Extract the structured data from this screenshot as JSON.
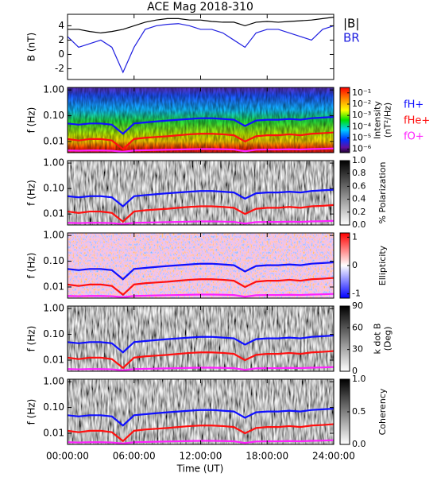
{
  "chart_data": [
    {
      "type": "line",
      "title": "ACE Mag 2018-310",
      "ylabel": "B (nT)",
      "x": [
        0,
        1,
        2,
        3,
        4,
        5,
        6,
        7,
        8,
        9,
        10,
        11,
        12,
        13,
        14,
        15,
        16,
        17,
        18,
        19,
        20,
        21,
        22,
        23,
        24
      ],
      "ylim": [
        -3.5,
        5.6
      ],
      "yticks": [
        -2,
        0,
        2,
        4
      ],
      "series": [
        {
          "name": "|B|",
          "color": "#000000",
          "values": [
            3.5,
            3.5,
            3.2,
            3.0,
            3.2,
            3.5,
            4.0,
            4.5,
            4.8,
            5.0,
            5.0,
            4.8,
            4.8,
            4.6,
            4.5,
            4.5,
            4.0,
            4.5,
            4.6,
            4.5,
            4.6,
            4.7,
            4.8,
            5.0,
            5.2
          ]
        },
        {
          "name": "BR",
          "color": "#2020e0",
          "values": [
            2.5,
            1.0,
            1.5,
            2.0,
            1.0,
            -2.5,
            1.0,
            3.5,
            4.0,
            4.2,
            4.3,
            4.0,
            3.5,
            3.5,
            3.0,
            2.0,
            1.0,
            3.0,
            3.5,
            3.5,
            3.0,
            2.5,
            2.0,
            3.5,
            4.0
          ]
        }
      ]
    },
    {
      "type": "spectrogram",
      "ylabel": "f (Hz)",
      "log_y": true,
      "ylim": [
        0.0037,
        1.25
      ],
      "yticks": [
        {
          "value": 1,
          "label": "1.00"
        },
        {
          "value": 0.1,
          "label": "0.10"
        },
        {
          "value": 0.01,
          "label": "0.01"
        }
      ],
      "colorbar": {
        "label": [
          "Intensity",
          "(nT²/Hz)"
        ],
        "colormap": "rainbow",
        "log": true,
        "lim": [
          5e-07,
          0.3
        ],
        "ticks": [
          {
            "value": 0.1,
            "label": "10⁻¹"
          },
          {
            "value": 0.01,
            "label": "10⁻²"
          },
          {
            "value": 0.001,
            "label": "10⁻³"
          },
          {
            "value": 0.0001,
            "label": "10⁻⁴"
          },
          {
            "value": 1e-05,
            "label": "10⁻⁵"
          },
          {
            "value": 1e-06,
            "label": "10⁻⁶"
          }
        ]
      },
      "x": [
        0,
        1,
        2,
        3,
        4,
        5,
        6,
        7,
        8,
        9,
        10,
        11,
        12,
        13,
        14,
        15,
        16,
        17,
        18,
        19,
        20,
        21,
        22,
        23,
        24
      ],
      "series": [
        {
          "name": "fH+",
          "color": "#1010ff",
          "values": [
            0.05,
            0.045,
            0.05,
            0.05,
            0.045,
            0.02,
            0.05,
            0.055,
            0.06,
            0.065,
            0.07,
            0.075,
            0.08,
            0.08,
            0.075,
            0.07,
            0.04,
            0.065,
            0.07,
            0.07,
            0.075,
            0.07,
            0.08,
            0.085,
            0.09
          ]
        },
        {
          "name": "fHe+",
          "color": "#ff1010",
          "values": [
            0.0125,
            0.011,
            0.0125,
            0.0125,
            0.011,
            0.005,
            0.0125,
            0.014,
            0.015,
            0.016,
            0.0175,
            0.019,
            0.02,
            0.02,
            0.019,
            0.0175,
            0.01,
            0.016,
            0.0175,
            0.0175,
            0.019,
            0.0175,
            0.02,
            0.021,
            0.0225
          ]
        },
        {
          "name": "fO+",
          "color": "#ff20ff",
          "values": [
            0.0045,
            0.0044,
            0.0045,
            0.0045,
            0.0044,
            0.004,
            0.0045,
            0.0046,
            0.0047,
            0.0048,
            0.0049,
            0.005,
            0.0051,
            0.0051,
            0.005,
            0.0049,
            0.0042,
            0.0048,
            0.0049,
            0.0049,
            0.005,
            0.0049,
            0.0051,
            0.0052,
            0.0054
          ]
        }
      ]
    },
    {
      "type": "spectrogram",
      "ylabel": "f (Hz)",
      "log_y": true,
      "ylim": [
        0.0037,
        1.25
      ],
      "yticks": [
        {
          "value": 1,
          "label": "1.00"
        },
        {
          "value": 0.1,
          "label": "0.10"
        },
        {
          "value": 0.01,
          "label": "0.01"
        }
      ],
      "colorbar": {
        "label": [
          "% Polarization"
        ],
        "colormap": "gray",
        "lim": [
          0,
          1
        ],
        "ticks": [
          {
            "value": 0,
            "label": "0.0"
          },
          {
            "value": 0.2,
            "label": "0.2"
          },
          {
            "value": 0.4,
            "label": "0.4"
          },
          {
            "value": 0.6,
            "label": "0.6"
          },
          {
            "value": 0.8,
            "label": "0.8"
          },
          {
            "value": 1,
            "label": "1.0"
          }
        ]
      }
    },
    {
      "type": "spectrogram",
      "ylabel": "f (Hz)",
      "log_y": true,
      "ylim": [
        0.0037,
        1.25
      ],
      "yticks": [
        {
          "value": 1,
          "label": "1.00"
        },
        {
          "value": 0.1,
          "label": "0.10"
        },
        {
          "value": 0.01,
          "label": "0.01"
        }
      ],
      "colorbar": {
        "label": [
          "Ellipticity"
        ],
        "colormap": "bluered",
        "lim": [
          -1.15,
          1.15
        ],
        "ticks": [
          -1,
          0,
          1
        ]
      }
    },
    {
      "type": "spectrogram",
      "ylabel": "f (Hz)",
      "log_y": true,
      "ylim": [
        0.0037,
        1.25
      ],
      "yticks": [
        {
          "value": 1,
          "label": "1.00"
        },
        {
          "value": 0.1,
          "label": "0.10"
        },
        {
          "value": 0.01,
          "label": "0.01"
        }
      ],
      "colorbar": {
        "label": [
          "k dot B",
          "(Deg)"
        ],
        "colormap": "gray",
        "lim": [
          0,
          90
        ],
        "ticks": [
          0,
          30,
          60,
          90
        ]
      }
    },
    {
      "type": "spectrogram",
      "ylabel": "f (Hz)",
      "log_y": true,
      "ylim": [
        0.0037,
        1.25
      ],
      "yticks": [
        {
          "value": 1,
          "label": "1.00"
        },
        {
          "value": 0.1,
          "label": "0.10"
        },
        {
          "value": 0.01,
          "label": "0.01"
        }
      ],
      "colorbar": {
        "label": [
          "Coherency"
        ],
        "colormap": "gray",
        "lim": [
          0,
          1
        ],
        "ticks": [
          {
            "value": 0,
            "label": "0.0"
          },
          {
            "value": 0.5,
            "label": "0.5"
          },
          {
            "value": 1,
            "label": "1.0"
          }
        ]
      },
      "xlabel": "Time (UT)",
      "xlim": [
        0,
        24
      ],
      "xticks": [
        {
          "value": 0,
          "label": "00:00:00"
        },
        {
          "value": 6,
          "label": "06:00:00"
        },
        {
          "value": 12,
          "label": "12:00:00"
        },
        {
          "value": 18,
          "label": "18:00:00"
        },
        {
          "value": 24,
          "label": "24:00:00"
        }
      ]
    }
  ]
}
